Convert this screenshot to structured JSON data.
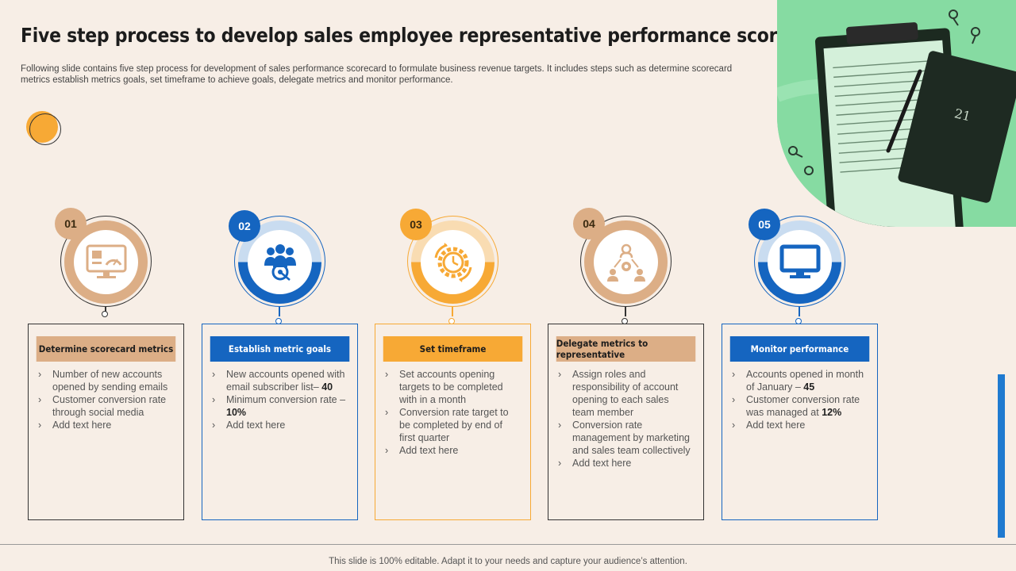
{
  "title": "Five step process to develop sales employee representative performance scorecard",
  "subtitle": "Following slide contains five step process for development of sales performance scorecard to formulate business revenue targets. It includes steps such as determine scorecard metrics establish metrics goals, set timeframe to achieve goals, delegate metrics and monitor performance.",
  "photo": {
    "notebook_text": "21"
  },
  "steps": [
    {
      "number": "01",
      "heading": "Determine scorecard metrics",
      "icon": "dashboard-monitor-icon",
      "color": "#dcae86",
      "head_text_color": "#1c1c1c",
      "items": [
        {
          "text": "Number of new accounts opened by sending emails",
          "bold": ""
        },
        {
          "text": "Customer conversion rate through social media",
          "bold": ""
        },
        {
          "text": "Add text here",
          "bold": ""
        }
      ]
    },
    {
      "number": "02",
      "heading": "Establish metric goals",
      "icon": "team-target-icon",
      "color": "#1565c0",
      "head_text_color": "#ffffff",
      "items": [
        {
          "text": "New accounts opened with email subscriber list– ",
          "bold": "40"
        },
        {
          "text": "Minimum conversion rate – ",
          "bold": "10%"
        },
        {
          "text": "Add text here",
          "bold": ""
        }
      ]
    },
    {
      "number": "03",
      "heading": "Set timeframe",
      "icon": "clock-gear-icon",
      "color": "#f7a935",
      "head_text_color": "#1c1c1c",
      "items": [
        {
          "text": "Set accounts opening targets to be completed with in a month",
          "bold": ""
        },
        {
          "text": "Conversion rate target to be completed by end of first quarter",
          "bold": ""
        },
        {
          "text": "Add text here",
          "bold": ""
        }
      ]
    },
    {
      "number": "04",
      "heading": "Delegate metrics to representative",
      "icon": "people-gear-icon",
      "color": "#dcae86",
      "head_text_color": "#1c1c1c",
      "items": [
        {
          "text": "Assign roles and responsibility of account opening to each sales team member",
          "bold": ""
        },
        {
          "text": "Conversion rate management by marketing and sales team collectively",
          "bold": ""
        },
        {
          "text": "Add text here",
          "bold": ""
        }
      ]
    },
    {
      "number": "05",
      "heading": "Monitor performance",
      "icon": "monitor-icon",
      "color": "#1565c0",
      "head_text_color": "#ffffff",
      "items": [
        {
          "text": "Accounts opened in month of January – ",
          "bold": "45"
        },
        {
          "text": "Customer conversion rate was managed at ",
          "bold": "12%"
        },
        {
          "text": "Add text here",
          "bold": ""
        }
      ]
    }
  ],
  "footer": "This slide is 100% editable. Adapt it to your needs and capture your audience’s attention."
}
